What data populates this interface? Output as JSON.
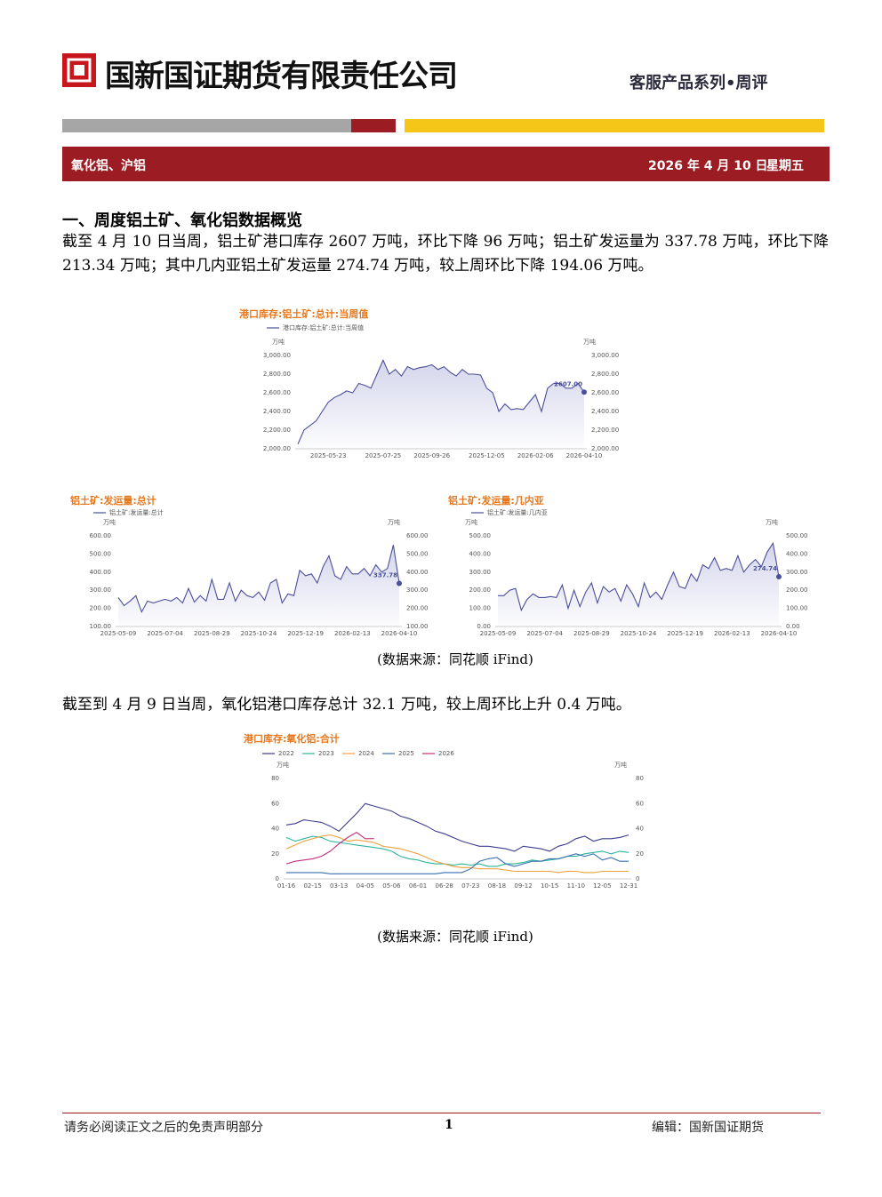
{
  "header": {
    "company": "国新国证期货有限责任公司",
    "series": "客服产品系列•周评"
  },
  "banner": {
    "topic": "氧化铝、沪铝",
    "date": "2026 年 4 月 10 日",
    "weekday": "星期五"
  },
  "section": {
    "heading": "一、周度铝土矿、氧化铝数据概览",
    "paragraph1": "截至 4 月 10 日当周，铝土矿港口库存 2607 万吨，环比下降 96 万吨；铝土矿发运量为 337.78 万吨，环比下降 213.34 万吨；其中几内亚铝土矿发运量 274.74 万吨，较上周环比下降 194.06 万吨。",
    "caption1": "(数据来源：同花顺 iFind)",
    "paragraph2": "截至到 4 月 9 日当周，氧化铝港口库存总计 32.1 万吨，较上周环比上升 0.4 万吨。",
    "caption2": "(数据来源：同花顺 iFind)"
  },
  "chart_data": [
    {
      "type": "line",
      "title": "港口库存:铝土矿:总计:当周值",
      "y_label": "万吨",
      "y2_label": "万吨",
      "area": true,
      "grid": false,
      "categories": [
        null,
        null,
        null,
        null,
        null,
        "2025-05-23",
        null,
        null,
        null,
        null,
        null,
        null,
        null,
        null,
        "2025-07-25",
        null,
        null,
        null,
        null,
        null,
        null,
        null,
        "2025-09-26",
        null,
        null,
        null,
        null,
        null,
        null,
        null,
        null,
        "2025-12-05",
        null,
        null,
        null,
        null,
        null,
        null,
        null,
        "2026-02-06",
        null,
        null,
        null,
        null,
        null,
        null,
        null,
        "2026-04-10"
      ],
      "series": [
        {
          "name": "港口库存:铝土矿:总计:当周值",
          "color": "#4b4f9a",
          "values": [
            2050,
            2200,
            2250,
            2300,
            2400,
            2500,
            2550,
            2580,
            2620,
            2600,
            2700,
            2680,
            2650,
            2800,
            2950,
            2800,
            2850,
            2780,
            2880,
            2850,
            2870,
            2880,
            2900,
            2850,
            2880,
            2820,
            2780,
            2850,
            2800,
            2800,
            2790,
            2650,
            2600,
            2400,
            2480,
            2420,
            2430,
            2420,
            2500,
            2580,
            2400,
            2650,
            2700,
            2700,
            2650,
            2650,
            2700,
            2607
          ],
          "value_labels": [
            null,
            null,
            null,
            null,
            null,
            null,
            null,
            null,
            null,
            null,
            null,
            null,
            null,
            null,
            null,
            null,
            null,
            null,
            null,
            null,
            null,
            null,
            null,
            null,
            null,
            null,
            null,
            null,
            null,
            null,
            null,
            null,
            null,
            null,
            null,
            null,
            null,
            null,
            null,
            null,
            null,
            null,
            null,
            null,
            null,
            null,
            null,
            "2607.00"
          ]
        }
      ],
      "ylim": [
        2000,
        3000
      ],
      "yticks": [
        {
          "value": 2000,
          "label": "2,000.00"
        },
        {
          "value": 2200,
          "label": "2,200.00"
        },
        {
          "value": 2400,
          "label": "2,400.00"
        },
        {
          "value": 2600,
          "label": "2,600.00"
        },
        {
          "value": 2800,
          "label": "2,800.00"
        },
        {
          "value": 3000,
          "label": "3,000.00"
        }
      ],
      "y2lim": [
        2000,
        3000
      ],
      "y2ticks": [
        {
          "value": 2000,
          "label": "2,000.00"
        },
        {
          "value": 2200,
          "label": "2,200.00"
        },
        {
          "value": 2400,
          "label": "2,400.00"
        },
        {
          "value": 2600,
          "label": "2,600.00"
        },
        {
          "value": 2800,
          "label": "2,800.00"
        },
        {
          "value": 3000,
          "label": "3,000.00"
        }
      ]
    },
    {
      "type": "line",
      "title": "铝土矿:发运量:总计",
      "y_label": "万吨",
      "y2_label": "万吨",
      "area": true,
      "grid": false,
      "categories": [
        "2025-05-09",
        null,
        null,
        null,
        null,
        null,
        null,
        null,
        "2025-07-04",
        null,
        null,
        null,
        null,
        null,
        null,
        null,
        "2025-08-29",
        null,
        null,
        null,
        null,
        null,
        null,
        null,
        "2025-10-24",
        null,
        null,
        null,
        null,
        null,
        null,
        null,
        "2025-12-19",
        null,
        null,
        null,
        null,
        null,
        null,
        null,
        "2026-02-13",
        null,
        null,
        null,
        null,
        null,
        null,
        null,
        "2026-04-10"
      ],
      "series": [
        {
          "name": "铝土矿:发运量:总计",
          "color": "#4b4f9a",
          "values": [
            260,
            215,
            240,
            270,
            180,
            240,
            230,
            240,
            250,
            240,
            260,
            230,
            310,
            235,
            270,
            240,
            360,
            250,
            250,
            340,
            240,
            300,
            270,
            260,
            290,
            245,
            340,
            360,
            230,
            280,
            270,
            410,
            380,
            390,
            340,
            430,
            490,
            380,
            360,
            430,
            390,
            390,
            420,
            380,
            440,
            400,
            420,
            550,
            337.78
          ],
          "value_labels": [
            null,
            null,
            null,
            null,
            null,
            null,
            null,
            null,
            null,
            null,
            null,
            null,
            null,
            null,
            null,
            null,
            null,
            null,
            null,
            null,
            null,
            null,
            null,
            null,
            null,
            null,
            null,
            null,
            null,
            null,
            null,
            null,
            null,
            null,
            null,
            null,
            null,
            null,
            null,
            null,
            null,
            null,
            null,
            null,
            null,
            null,
            null,
            null,
            "337.78"
          ]
        }
      ],
      "ylim": [
        100,
        600
      ],
      "yticks": [
        {
          "value": 100,
          "label": "100.00"
        },
        {
          "value": 200,
          "label": "200.00"
        },
        {
          "value": 300,
          "label": "300.00"
        },
        {
          "value": 400,
          "label": "400.00"
        },
        {
          "value": 500,
          "label": "500.00"
        },
        {
          "value": 600,
          "label": "600.00"
        }
      ],
      "y2lim": [
        100,
        600
      ],
      "y2ticks": [
        {
          "value": 100,
          "label": "100.00"
        },
        {
          "value": 200,
          "label": "200.00"
        },
        {
          "value": 300,
          "label": "300.00"
        },
        {
          "value": 400,
          "label": "400.00"
        },
        {
          "value": 500,
          "label": "500.00"
        },
        {
          "value": 600,
          "label": "600.00"
        }
      ]
    },
    {
      "type": "line",
      "title": "铝土矿:发运量:几内亚",
      "y_label": "万吨",
      "y2_label": "万吨",
      "area": true,
      "grid": false,
      "categories": [
        "2025-05-09",
        null,
        null,
        null,
        null,
        null,
        null,
        null,
        "2025-07-04",
        null,
        null,
        null,
        null,
        null,
        null,
        null,
        "2025-08-29",
        null,
        null,
        null,
        null,
        null,
        null,
        null,
        "2025-10-24",
        null,
        null,
        null,
        null,
        null,
        null,
        null,
        "2025-12-19",
        null,
        null,
        null,
        null,
        null,
        null,
        null,
        "2026-02-13",
        null,
        null,
        null,
        null,
        null,
        null,
        null,
        "2026-04-10"
      ],
      "series": [
        {
          "name": "铝土矿:发运量:几内亚",
          "color": "#4b4f9a",
          "values": [
            170,
            170,
            200,
            210,
            90,
            150,
            180,
            160,
            160,
            165,
            160,
            230,
            100,
            200,
            110,
            190,
            240,
            130,
            220,
            190,
            210,
            140,
            230,
            180,
            110,
            240,
            160,
            190,
            150,
            230,
            300,
            220,
            210,
            290,
            250,
            340,
            320,
            380,
            310,
            320,
            310,
            390,
            300,
            340,
            370,
            330,
            410,
            460,
            274.74
          ],
          "value_labels": [
            null,
            null,
            null,
            null,
            null,
            null,
            null,
            null,
            null,
            null,
            null,
            null,
            null,
            null,
            null,
            null,
            null,
            null,
            null,
            null,
            null,
            null,
            null,
            null,
            null,
            null,
            null,
            null,
            null,
            null,
            null,
            null,
            null,
            null,
            null,
            null,
            null,
            null,
            null,
            null,
            null,
            null,
            null,
            null,
            null,
            null,
            null,
            null,
            "274.74"
          ]
        }
      ],
      "ylim": [
        0,
        500
      ],
      "yticks": [
        {
          "value": 0,
          "label": "0.00"
        },
        {
          "value": 100,
          "label": "100.00"
        },
        {
          "value": 200,
          "label": "200.00"
        },
        {
          "value": 300,
          "label": "300.00"
        },
        {
          "value": 400,
          "label": "400.00"
        },
        {
          "value": 500,
          "label": "500.00"
        }
      ],
      "y2lim": [
        0,
        500
      ],
      "y2ticks": [
        {
          "value": 0,
          "label": "0.00"
        },
        {
          "value": 100,
          "label": "100.00"
        },
        {
          "value": 200,
          "label": "200.00"
        },
        {
          "value": 300,
          "label": "300.00"
        },
        {
          "value": 400,
          "label": "400.00"
        },
        {
          "value": 500,
          "label": "500.00"
        }
      ]
    },
    {
      "type": "line",
      "title": "港口库存:氧化铝:合计",
      "y_label": "万吨",
      "y2_label": "万吨",
      "area": false,
      "grid": false,
      "categories": [
        "01-16",
        null,
        null,
        "02-15",
        null,
        null,
        "03-13",
        null,
        null,
        "04-05",
        null,
        null,
        "05-06",
        null,
        null,
        "06-01",
        null,
        null,
        "06-28",
        null,
        null,
        "07-23",
        null,
        null,
        "08-18",
        null,
        null,
        "09-12",
        null,
        null,
        "10-15",
        null,
        null,
        "11-10",
        null,
        null,
        "12-05",
        null,
        null,
        "12-31"
      ],
      "series": [
        {
          "name": "2022",
          "color": "#3d3d8f",
          "values": [
            43,
            44,
            47,
            46,
            45,
            42,
            38,
            45,
            52,
            60,
            58,
            56,
            54,
            50,
            48,
            45,
            42,
            38,
            36,
            33,
            30,
            28,
            26,
            26,
            25,
            24,
            22,
            26,
            25,
            24,
            22,
            26,
            28,
            32,
            34,
            30,
            32,
            32,
            33,
            35
          ]
        },
        {
          "name": "2023",
          "color": "#2bb39b",
          "values": [
            33,
            30,
            32,
            34,
            33,
            30,
            29,
            28,
            27,
            26,
            25,
            24,
            22,
            18,
            16,
            15,
            13,
            12,
            12,
            11,
            12,
            11,
            12,
            10,
            10,
            12,
            12,
            13,
            15,
            14,
            15,
            16,
            18,
            18,
            20,
            21,
            22,
            20,
            22,
            21
          ]
        },
        {
          "name": "2024",
          "color": "#f0a040",
          "values": [
            24,
            27,
            30,
            32,
            34,
            35,
            33,
            30,
            31,
            30,
            29,
            26,
            25,
            24,
            22,
            20,
            17,
            14,
            12,
            10,
            9,
            9,
            8,
            8,
            8,
            7,
            6,
            6,
            6,
            6,
            6,
            5,
            6,
            6,
            5,
            5,
            6,
            6,
            6,
            6
          ]
        },
        {
          "name": "2025",
          "color": "#3a6fb0",
          "values": [
            5,
            5,
            5,
            5,
            5,
            4,
            4,
            4,
            4,
            4,
            4,
            4,
            4,
            4,
            4,
            4,
            4,
            4,
            5,
            5,
            5,
            8,
            14,
            16,
            17,
            12,
            10,
            12,
            14,
            14,
            16,
            16,
            18,
            20,
            18,
            20,
            15,
            17,
            14,
            14
          ]
        },
        {
          "name": "2026",
          "color": "#c0307a",
          "values": [
            12,
            14,
            15,
            16,
            18,
            22,
            28,
            33,
            37,
            32,
            32.1,
            null,
            null,
            null,
            null,
            null,
            null,
            null,
            null,
            null,
            null,
            null,
            null,
            null,
            null,
            null,
            null,
            null,
            null,
            null,
            null,
            null,
            null,
            null,
            null,
            null,
            null,
            null,
            null,
            null
          ]
        }
      ],
      "ylim": [
        0,
        80
      ],
      "yticks": [
        0,
        20,
        40,
        60,
        80
      ],
      "y2lim": [
        0,
        80
      ],
      "y2ticks": [
        0,
        20,
        40,
        60,
        80
      ]
    }
  ],
  "footer": {
    "disclaimer": "请务必阅读正文之后的免责声明部分",
    "page": "1",
    "editor": "编辑：国新国证期货"
  }
}
